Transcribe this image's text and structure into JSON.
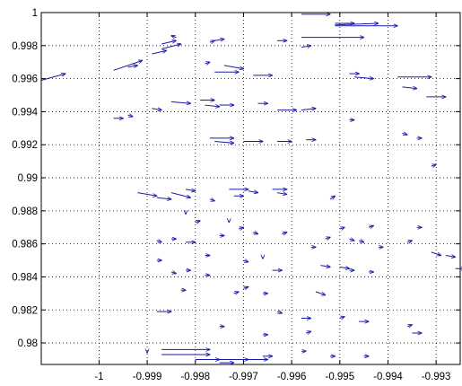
{
  "chart_data": {
    "type": "quiver",
    "title": "",
    "xlabel": "",
    "ylabel": "",
    "xlim": [
      -1.0012,
      -0.9925
    ],
    "ylim": [
      0.9787,
      1.0
    ],
    "grid": true,
    "colors": {
      "arrow": "#1a1aa6",
      "grid": "#000000",
      "axes": "#000000",
      "background": "#ffffff"
    },
    "x_ticks": [
      {
        "value": -1.0,
        "label": "-1"
      },
      {
        "value": -0.999,
        "label": "-0.999"
      },
      {
        "value": -0.998,
        "label": "-0.998"
      },
      {
        "value": -0.997,
        "label": "-0.997"
      },
      {
        "value": -0.996,
        "label": "-0.996"
      },
      {
        "value": -0.995,
        "label": "-0.995"
      },
      {
        "value": -0.994,
        "label": "-0.994"
      },
      {
        "value": -0.993,
        "label": "-0.993"
      }
    ],
    "y_ticks": [
      {
        "value": 0.98,
        "label": "0.98"
      },
      {
        "value": 0.982,
        "label": "0.982"
      },
      {
        "value": 0.984,
        "label": "0.984"
      },
      {
        "value": 0.986,
        "label": "0.986"
      },
      {
        "value": 0.988,
        "label": "0.988"
      },
      {
        "value": 0.99,
        "label": "0.99"
      },
      {
        "value": 0.992,
        "label": "0.992"
      },
      {
        "value": 0.994,
        "label": "0.994"
      },
      {
        "value": 0.996,
        "label": "0.996"
      },
      {
        "value": 0.998,
        "label": "0.998"
      },
      {
        "value": 1.0,
        "label": "1"
      }
    ],
    "vectors": [
      {
        "x": -1.0012,
        "y": 0.9959,
        "u": 0.0005,
        "v": 0.0004
      },
      {
        "x": -0.9997,
        "y": 0.9965,
        "u": 0.0006,
        "v": 0.0006
      },
      {
        "x": -0.9994,
        "y": 0.9967,
        "u": 0.0002,
        "v": 0.0001
      },
      {
        "x": -0.9989,
        "y": 0.9975,
        "u": 0.0003,
        "v": 0.0002
      },
      {
        "x": -0.9987,
        "y": 0.9978,
        "u": 0.0004,
        "v": 0.0003
      },
      {
        "x": -0.9987,
        "y": 0.9981,
        "u": 0.0003,
        "v": 0.0002
      },
      {
        "x": -0.9984,
        "y": 0.9985,
        "u": -0.0001,
        "v": 0.0001
      },
      {
        "x": -0.9977,
        "y": 0.9982,
        "u": 0.0001,
        "v": 0.0001
      },
      {
        "x": -0.9976,
        "y": 0.9983,
        "u": 0.0002,
        "v": 0.0001
      },
      {
        "x": -0.9978,
        "y": 0.9969,
        "u": 0.0001,
        "v": 0.0001
      },
      {
        "x": -0.9974,
        "y": 0.9968,
        "u": 0.0004,
        "v": -0.0002
      },
      {
        "x": -0.9976,
        "y": 0.9964,
        "u": 0.0005,
        "v": 0.0
      },
      {
        "x": -0.9968,
        "y": 0.9962,
        "u": 0.0004,
        "v": 0.0
      },
      {
        "x": -0.9963,
        "y": 0.9983,
        "u": 0.0002,
        "v": 0.0
      },
      {
        "x": -0.9958,
        "y": 0.9979,
        "u": 0.0002,
        "v": 0.0001
      },
      {
        "x": -0.9951,
        "y": 0.9992,
        "u": 0.0013,
        "v": 0.0
      },
      {
        "x": -0.9951,
        "y": 0.99925,
        "u": 0.0009,
        "v": 0.0001
      },
      {
        "x": -0.9951,
        "y": 0.99935,
        "u": 0.0004,
        "v": 0.0
      },
      {
        "x": -0.9958,
        "y": 0.9985,
        "u": 0.0013,
        "v": 0.0
      },
      {
        "x": -0.9958,
        "y": 0.9999,
        "u": 0.0006,
        "v": 0.0
      },
      {
        "x": -0.9948,
        "y": 0.9963,
        "u": 0.0002,
        "v": 0.0
      },
      {
        "x": -0.9947,
        "y": 0.9961,
        "u": 0.0004,
        "v": -0.0001
      },
      {
        "x": -0.9938,
        "y": 0.9961,
        "u": 0.0007,
        "v": 0.0
      },
      {
        "x": -0.9937,
        "y": 0.9955,
        "u": 0.0003,
        "v": -0.0001
      },
      {
        "x": -0.9932,
        "y": 0.9949,
        "u": 0.0004,
        "v": 0.0
      },
      {
        "x": -0.9979,
        "y": 0.9947,
        "u": 0.0003,
        "v": 0.0
      },
      {
        "x": -0.9978,
        "y": 0.9944,
        "u": 0.0003,
        "v": -0.0001
      },
      {
        "x": -0.9975,
        "y": 0.9944,
        "u": 0.0003,
        "v": 0.0
      },
      {
        "x": -0.9967,
        "y": 0.9945,
        "u": 0.0002,
        "v": 0.0
      },
      {
        "x": -0.9963,
        "y": 0.9941,
        "u": 0.0004,
        "v": 0.0
      },
      {
        "x": -0.9958,
        "y": 0.9941,
        "u": 0.0003,
        "v": 0.0001
      },
      {
        "x": -0.9948,
        "y": 0.9935,
        "u": 0.0001,
        "v": 0.0
      },
      {
        "x": -0.9989,
        "y": 0.9942,
        "u": 0.0002,
        "v": -0.0001
      },
      {
        "x": -0.9985,
        "y": 0.9946,
        "u": 0.0004,
        "v": -0.0001
      },
      {
        "x": -0.9994,
        "y": 0.9938,
        "u": 0.0001,
        "v": -0.0001
      },
      {
        "x": -0.9997,
        "y": 0.9936,
        "u": 0.0002,
        "v": 0.0
      },
      {
        "x": -0.9977,
        "y": 0.9924,
        "u": 0.0005,
        "v": 0.0
      },
      {
        "x": -0.9976,
        "y": 0.9922,
        "u": 0.0004,
        "v": -0.0001
      },
      {
        "x": -0.997,
        "y": 0.9922,
        "u": 0.0004,
        "v": 0.0
      },
      {
        "x": -0.9963,
        "y": 0.9922,
        "u": 0.0003,
        "v": 0.0
      },
      {
        "x": -0.9957,
        "y": 0.9923,
        "u": 0.0002,
        "v": 0.0
      },
      {
        "x": -0.9937,
        "y": 0.9927,
        "u": 0.0001,
        "v": -0.0001
      },
      {
        "x": -0.9934,
        "y": 0.9924,
        "u": 0.0001,
        "v": 0.0
      },
      {
        "x": -0.9931,
        "y": 0.9907,
        "u": 0.0001,
        "v": 0.0001
      },
      {
        "x": -0.9992,
        "y": 0.9891,
        "u": 0.0004,
        "v": -0.0002
      },
      {
        "x": -0.9988,
        "y": 0.9888,
        "u": 0.0003,
        "v": -0.0001
      },
      {
        "x": -0.9985,
        "y": 0.9891,
        "u": 0.0004,
        "v": -0.0003
      },
      {
        "x": -0.9982,
        "y": 0.9893,
        "u": 0.0002,
        "v": -0.0001
      },
      {
        "x": -0.9973,
        "y": 0.9893,
        "u": 0.0004,
        "v": 0.0
      },
      {
        "x": -0.9969,
        "y": 0.9892,
        "u": 0.0002,
        "v": -0.0001
      },
      {
        "x": -0.9964,
        "y": 0.9893,
        "u": 0.0003,
        "v": 0.0
      },
      {
        "x": -0.9963,
        "y": 0.9891,
        "u": 0.0002,
        "v": -0.0001
      },
      {
        "x": -0.9952,
        "y": 0.9887,
        "u": 0.0001,
        "v": 0.0002
      },
      {
        "x": -0.9972,
        "y": 0.9889,
        "u": 0.0002,
        "v": 0.0
      },
      {
        "x": -0.9977,
        "y": 0.9887,
        "u": 0.0001,
        "v": -0.0001
      },
      {
        "x": -0.9982,
        "y": 0.9879,
        "u": 0.0,
        "v": -0.0001
      },
      {
        "x": -0.998,
        "y": 0.9873,
        "u": 0.0001,
        "v": 0.0001
      },
      {
        "x": -0.9973,
        "y": 0.9874,
        "u": 0.0,
        "v": -0.0001
      },
      {
        "x": -0.9971,
        "y": 0.9869,
        "u": 0.0001,
        "v": 0.0001
      },
      {
        "x": -0.9988,
        "y": 0.9862,
        "u": 0.0001,
        "v": -0.0001
      },
      {
        "x": -0.9985,
        "y": 0.9863,
        "u": 0.0001,
        "v": 0.0
      },
      {
        "x": -0.9982,
        "y": 0.9861,
        "u": 0.0002,
        "v": 0.0
      },
      {
        "x": -0.9975,
        "y": 0.9865,
        "u": 0.0001,
        "v": 0.0
      },
      {
        "x": -0.9968,
        "y": 0.9867,
        "u": 0.0001,
        "v": -0.0001
      },
      {
        "x": -0.9962,
        "y": 0.9866,
        "u": 0.0001,
        "v": 0.0001
      },
      {
        "x": -0.995,
        "y": 0.9869,
        "u": 0.0001,
        "v": 0.0001
      },
      {
        "x": -0.9944,
        "y": 0.987,
        "u": 0.0001,
        "v": 0.0001
      },
      {
        "x": -0.9934,
        "y": 0.987,
        "u": 0.0001,
        "v": 0.0
      },
      {
        "x": -0.9946,
        "y": 0.9862,
        "u": 0.0001,
        "v": -0.0001
      },
      {
        "x": -0.9942,
        "y": 0.9858,
        "u": 0.0001,
        "v": 0.0
      },
      {
        "x": -0.9936,
        "y": 0.9861,
        "u": 0.0001,
        "v": 0.0001
      },
      {
        "x": -0.9931,
        "y": 0.9855,
        "u": 0.0002,
        "v": -0.0002
      },
      {
        "x": -0.9928,
        "y": 0.9853,
        "u": 0.0002,
        "v": -0.0001
      },
      {
        "x": -0.9988,
        "y": 0.985,
        "u": 0.0001,
        "v": 0.0
      },
      {
        "x": -0.9978,
        "y": 0.9853,
        "u": 0.0001,
        "v": 0.0
      },
      {
        "x": -0.997,
        "y": 0.985,
        "u": 0.0001,
        "v": -0.0001
      },
      {
        "x": -0.9966,
        "y": 0.9852,
        "u": 0.0,
        "v": -0.0001
      },
      {
        "x": -0.9956,
        "y": 0.9858,
        "u": 0.0001,
        "v": 0.0
      },
      {
        "x": -0.9953,
        "y": 0.9863,
        "u": 0.0001,
        "v": 0.0001
      },
      {
        "x": -0.9948,
        "y": 0.9863,
        "u": 0.0001,
        "v": -0.0001
      },
      {
        "x": -0.9985,
        "y": 0.9843,
        "u": 0.0001,
        "v": -0.0001
      },
      {
        "x": -0.9982,
        "y": 0.9844,
        "u": 0.0001,
        "v": 0.0
      },
      {
        "x": -0.9978,
        "y": 0.9841,
        "u": 0.0001,
        "v": 0.0
      },
      {
        "x": -0.9964,
        "y": 0.9844,
        "u": 0.0002,
        "v": 0.0
      },
      {
        "x": -0.9954,
        "y": 0.9847,
        "u": 0.0002,
        "v": -0.0001
      },
      {
        "x": -0.995,
        "y": 0.9846,
        "u": 0.0002,
        "v": -0.0001
      },
      {
        "x": -0.9948,
        "y": 0.9844,
        "u": 0.0001,
        "v": 0.0
      },
      {
        "x": -0.9944,
        "y": 0.9843,
        "u": 0.0001,
        "v": 0.0
      },
      {
        "x": -0.9926,
        "y": 0.9845,
        "u": 0.0002,
        "v": 0.0
      },
      {
        "x": -0.9983,
        "y": 0.9832,
        "u": 0.0001,
        "v": 0.0
      },
      {
        "x": -0.9972,
        "y": 0.983,
        "u": 0.0001,
        "v": 0.0001
      },
      {
        "x": -0.997,
        "y": 0.9833,
        "u": 0.0001,
        "v": 0.0001
      },
      {
        "x": -0.9966,
        "y": 0.983,
        "u": 0.0001,
        "v": 0.0
      },
      {
        "x": -0.9955,
        "y": 0.9831,
        "u": 0.0002,
        "v": -0.0002
      },
      {
        "x": -0.9988,
        "y": 0.9819,
        "u": 0.0003,
        "v": 0.0
      },
      {
        "x": -0.9963,
        "y": 0.9819,
        "u": 0.0001,
        "v": -0.0001
      },
      {
        "x": -0.9958,
        "y": 0.9815,
        "u": 0.0002,
        "v": 0.0
      },
      {
        "x": -0.995,
        "y": 0.9815,
        "u": 0.0001,
        "v": 0.0001
      },
      {
        "x": -0.9946,
        "y": 0.9813,
        "u": 0.0002,
        "v": 0.0
      },
      {
        "x": -0.9936,
        "y": 0.981,
        "u": 0.0001,
        "v": 0.0001
      },
      {
        "x": -0.9935,
        "y": 0.9806,
        "u": 0.0002,
        "v": 0.0
      },
      {
        "x": -0.9975,
        "y": 0.981,
        "u": 0.0001,
        "v": 0.0
      },
      {
        "x": -0.9966,
        "y": 0.9805,
        "u": 0.0001,
        "v": 0.0
      },
      {
        "x": -0.9957,
        "y": 0.9806,
        "u": 0.0001,
        "v": 0.0001
      },
      {
        "x": -0.999,
        "y": 0.9795,
        "u": 0.0,
        "v": -0.0001
      },
      {
        "x": -0.9987,
        "y": 0.9796,
        "u": 0.001,
        "v": 0.0
      },
      {
        "x": -0.9987,
        "y": 0.9793,
        "u": 0.001,
        "v": 0.0
      },
      {
        "x": -0.998,
        "y": 0.979,
        "u": 0.0005,
        "v": 0.0
      },
      {
        "x": -0.9975,
        "y": 0.979,
        "u": 0.0006,
        "v": 0.0
      },
      {
        "x": -0.9969,
        "y": 0.979,
        "u": 0.0004,
        "v": 0.0
      },
      {
        "x": -0.9966,
        "y": 0.9792,
        "u": 0.0002,
        "v": 0.0
      },
      {
        "x": -0.9958,
        "y": 0.9795,
        "u": 0.0001,
        "v": 0.0
      },
      {
        "x": -0.9952,
        "y": 0.9792,
        "u": 0.0001,
        "v": 0.0
      },
      {
        "x": -0.9945,
        "y": 0.9792,
        "u": 0.0001,
        "v": 0.0
      },
      {
        "x": -0.9975,
        "y": 0.9788,
        "u": 0.0003,
        "v": 0.0
      }
    ]
  }
}
